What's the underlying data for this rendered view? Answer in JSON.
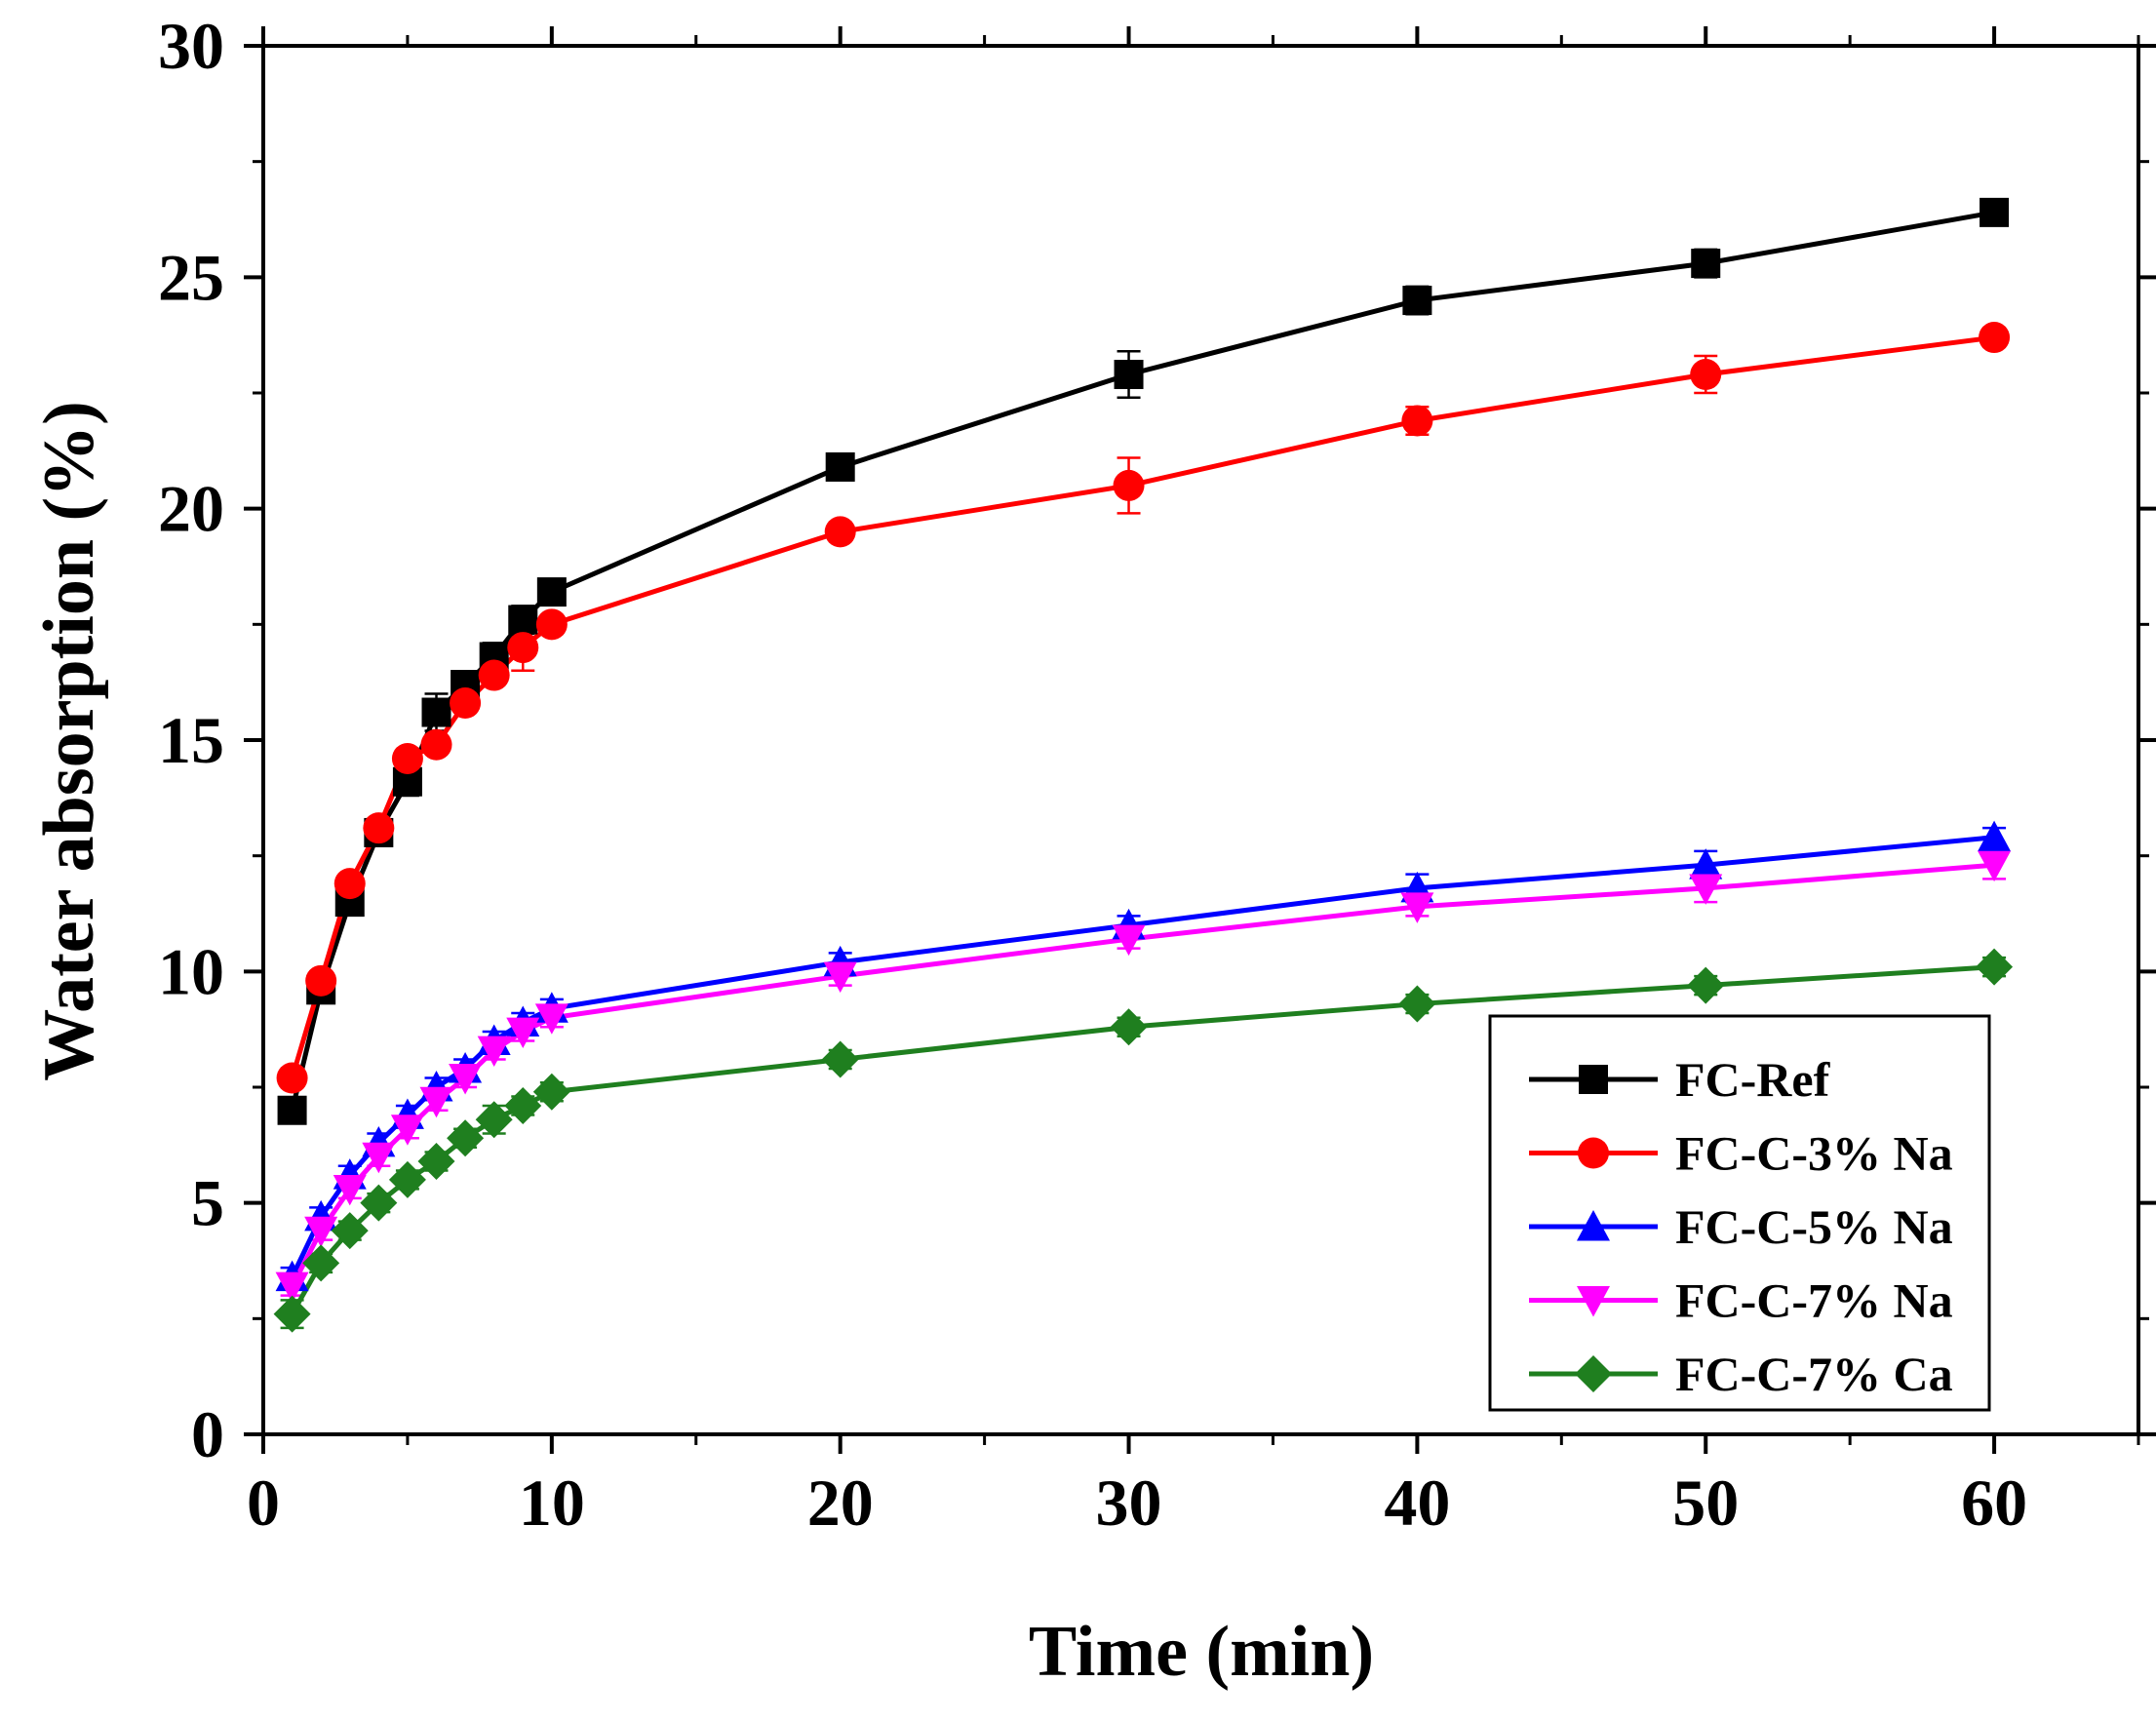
{
  "chart_data": {
    "type": "line",
    "title": "",
    "xlabel": "Time (min)",
    "ylabel": "Water absorption (%)",
    "xlim": [
      0,
      65
    ],
    "ylim": [
      0,
      30
    ],
    "x_ticks": [
      0,
      10,
      20,
      30,
      40,
      50,
      60
    ],
    "x_tick_labels": [
      "0",
      "10",
      "20",
      "30",
      "40",
      "50",
      "60"
    ],
    "y_ticks": [
      0,
      5,
      10,
      15,
      20,
      25,
      30
    ],
    "y_tick_labels": [
      "0",
      "5",
      "10",
      "15",
      "20",
      "25",
      "30"
    ],
    "grid": false,
    "legend_position": "bottom-right",
    "x": [
      1,
      2,
      3,
      4,
      5,
      6,
      7,
      8,
      9,
      10,
      20,
      30,
      40,
      50,
      60
    ],
    "series": [
      {
        "name": "FC-Ref",
        "color": "#000000",
        "marker": "square",
        "values": [
          7.0,
          9.6,
          11.5,
          13.0,
          14.1,
          15.6,
          16.2,
          16.8,
          17.6,
          18.2,
          20.9,
          22.9,
          24.5,
          25.3,
          26.4
        ],
        "errors": [
          0.2,
          0.2,
          0.2,
          0.2,
          0.3,
          0.4,
          0.2,
          0.3,
          0.3,
          0.2,
          0.2,
          0.5,
          0.3,
          0.3,
          0.2
        ]
      },
      {
        "name": "FC-C-3% Na",
        "color": "#ff0000",
        "marker": "circle",
        "values": [
          7.7,
          9.8,
          11.9,
          13.1,
          14.6,
          14.9,
          15.8,
          16.4,
          17.0,
          17.5,
          19.5,
          20.5,
          21.9,
          22.9,
          23.7
        ],
        "errors": [
          0.2,
          0.2,
          0.2,
          0.2,
          0.2,
          0.2,
          0.2,
          0.2,
          0.5,
          0.2,
          0.2,
          0.6,
          0.3,
          0.4,
          0.2
        ]
      },
      {
        "name": "FC-C-5% Na",
        "color": "#0000ff",
        "marker": "triangle-up",
        "values": [
          3.4,
          4.7,
          5.6,
          6.3,
          6.9,
          7.5,
          7.9,
          8.5,
          8.9,
          9.2,
          10.2,
          11.0,
          11.8,
          12.3,
          12.9
        ],
        "errors": [
          0.2,
          0.2,
          0.2,
          0.2,
          0.2,
          0.2,
          0.2,
          0.2,
          0.2,
          0.2,
          0.2,
          0.2,
          0.3,
          0.3,
          0.2
        ]
      },
      {
        "name": "FC-C-7% Na",
        "color": "#ff00ff",
        "marker": "triangle-down",
        "values": [
          3.2,
          4.4,
          5.3,
          6.0,
          6.6,
          7.2,
          7.7,
          8.3,
          8.7,
          9.0,
          9.9,
          10.7,
          11.4,
          11.8,
          12.3
        ],
        "errors": [
          0.2,
          0.2,
          0.2,
          0.2,
          0.2,
          0.2,
          0.2,
          0.2,
          0.2,
          0.2,
          0.2,
          0.2,
          0.2,
          0.3,
          0.3
        ]
      },
      {
        "name": "FC-C-7% Ca",
        "color": "#1f7f1f",
        "marker": "diamond",
        "values": [
          2.6,
          3.7,
          4.4,
          5.0,
          5.5,
          5.9,
          6.4,
          6.8,
          7.1,
          7.4,
          8.1,
          8.8,
          9.3,
          9.7,
          10.1
        ],
        "errors": [
          0.3,
          0.2,
          0.2,
          0.2,
          0.2,
          0.2,
          0.2,
          0.3,
          0.2,
          0.2,
          0.2,
          0.2,
          0.2,
          0.2,
          0.2
        ]
      }
    ]
  }
}
